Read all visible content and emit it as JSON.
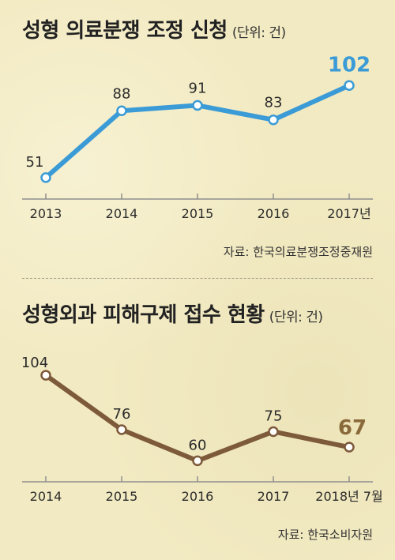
{
  "colors": {
    "background": "#f2eac2",
    "series1": "#3b9bd6",
    "series2": "#7d5a3a",
    "highlight2": "#8a6a3b",
    "axis": "#8f8f8f"
  },
  "chart_data": [
    {
      "type": "line",
      "title": "성형 의료분쟁 조정 신청",
      "unit": "(단위: 건)",
      "categories": [
        "2013",
        "2014",
        "2015",
        "2016",
        "2017년"
      ],
      "values": [
        51,
        88,
        91,
        83,
        102
      ],
      "highlight_index": 4,
      "source": "자료: 한국의료분쟁조정중재원",
      "ylim": [
        40,
        110
      ],
      "grid": false
    },
    {
      "type": "line",
      "title": "성형외과 피해구제 접수 현황",
      "unit": "(단위: 건)",
      "categories": [
        "2014",
        "2015",
        "2016",
        "2017",
        "2018년 7월"
      ],
      "values": [
        104,
        76,
        60,
        75,
        67
      ],
      "highlight_index": 4,
      "source": "자료: 한국소비자원",
      "ylim": [
        50,
        115
      ],
      "grid": false
    }
  ]
}
